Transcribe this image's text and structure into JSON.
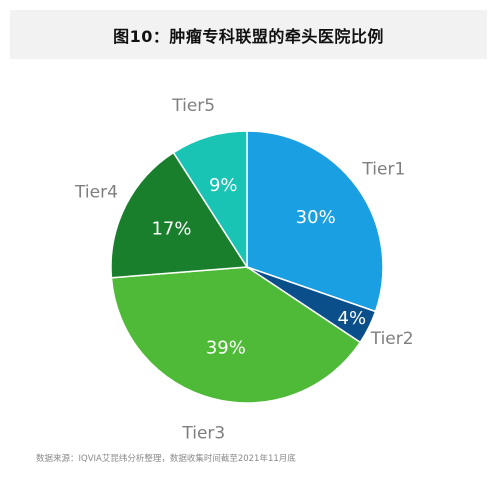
{
  "title": "图10：肿瘤专科联盟的牵头医院比例",
  "source_note": "数据来源：IQVIA艾昆纬分析整理，数据收集时间截至2021年11月底",
  "chart_data": {
    "type": "pie",
    "title": "图10：肿瘤专科联盟的牵头医院比例",
    "legend": "none",
    "start_angle": "12 o'clock, clockwise",
    "slices": [
      {
        "label": "Tier1",
        "value": 30,
        "value_label": "30%",
        "color": "#1a9fe2"
      },
      {
        "label": "Tier2",
        "value": 4,
        "value_label": "4%",
        "color": "#0b4f8a"
      },
      {
        "label": "Tier3",
        "value": 39,
        "value_label": "39%",
        "color": "#4fba38"
      },
      {
        "label": "Tier4",
        "value": 17,
        "value_label": "17%",
        "color": "#197f2d"
      },
      {
        "label": "Tier5",
        "value": 9,
        "value_label": "9%",
        "color": "#19c4b4"
      }
    ],
    "label_color": "#7f7f7f",
    "value_label_color": "#ffffff"
  }
}
